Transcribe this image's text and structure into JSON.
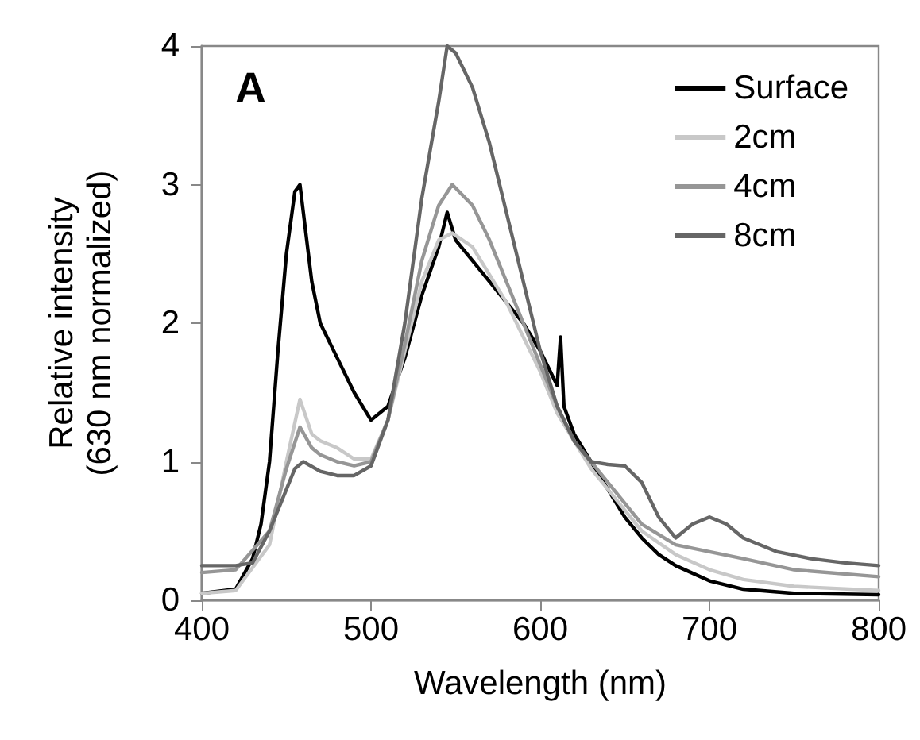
{
  "chart_data": {
    "type": "line",
    "xlabel": "Wavelength (nm)",
    "ylabel": "Relative intensity\n(630 nm normalized)",
    "annotations": [
      "A"
    ],
    "xlim": [
      400,
      800
    ],
    "xticks": [
      400,
      500,
      600,
      700,
      800
    ],
    "ylim": [
      0,
      4
    ],
    "yticks": [
      0,
      1,
      2,
      3,
      4
    ],
    "grid": false,
    "legend": "top right",
    "marker": "none",
    "line_style": "solid",
    "series": [
      {
        "name": "Surface",
        "color": "#000000",
        "x": [
          400,
          420,
          430,
          435,
          440,
          445,
          450,
          455,
          458,
          460,
          465,
          470,
          480,
          490,
          500,
          510,
          520,
          530,
          540,
          545,
          550,
          560,
          570,
          580,
          590,
          600,
          610,
          612,
          614,
          620,
          630,
          640,
          650,
          660,
          670,
          680,
          700,
          720,
          750,
          800
        ],
        "values": [
          0.05,
          0.08,
          0.3,
          0.55,
          1.0,
          1.8,
          2.5,
          2.95,
          3.0,
          2.8,
          2.3,
          2.0,
          1.75,
          1.5,
          1.3,
          1.4,
          1.75,
          2.2,
          2.55,
          2.8,
          2.6,
          2.45,
          2.3,
          2.15,
          2.0,
          1.8,
          1.55,
          1.9,
          1.4,
          1.2,
          1.0,
          0.8,
          0.6,
          0.45,
          0.33,
          0.25,
          0.14,
          0.08,
          0.05,
          0.04
        ]
      },
      {
        "name": "2cm",
        "color": "#c8c8c8",
        "x": [
          400,
          420,
          440,
          450,
          458,
          465,
          470,
          480,
          490,
          500,
          510,
          520,
          530,
          540,
          548,
          560,
          570,
          580,
          590,
          600,
          610,
          620,
          630,
          640,
          650,
          660,
          680,
          700,
          720,
          750,
          800
        ],
        "values": [
          0.05,
          0.07,
          0.4,
          1.0,
          1.45,
          1.2,
          1.15,
          1.1,
          1.02,
          1.02,
          1.3,
          1.8,
          2.3,
          2.6,
          2.65,
          2.55,
          2.35,
          2.15,
          1.9,
          1.65,
          1.35,
          1.15,
          0.95,
          0.8,
          0.65,
          0.5,
          0.33,
          0.22,
          0.15,
          0.1,
          0.07
        ]
      },
      {
        "name": "4cm",
        "color": "#969696",
        "x": [
          400,
          420,
          440,
          450,
          458,
          465,
          470,
          480,
          490,
          500,
          510,
          520,
          530,
          540,
          548,
          560,
          570,
          580,
          590,
          600,
          610,
          620,
          630,
          640,
          650,
          660,
          680,
          700,
          720,
          750,
          800
        ],
        "values": [
          0.2,
          0.22,
          0.5,
          0.95,
          1.25,
          1.1,
          1.05,
          1.0,
          0.97,
          1.0,
          1.3,
          1.85,
          2.45,
          2.85,
          3.0,
          2.85,
          2.6,
          2.3,
          2.0,
          1.7,
          1.4,
          1.15,
          1.0,
          0.85,
          0.7,
          0.55,
          0.4,
          0.35,
          0.3,
          0.22,
          0.17
        ]
      },
      {
        "name": "8cm",
        "color": "#666666",
        "x": [
          400,
          420,
          430,
          440,
          450,
          455,
          460,
          470,
          480,
          490,
          500,
          510,
          520,
          530,
          540,
          545,
          550,
          560,
          570,
          580,
          590,
          600,
          610,
          620,
          630,
          640,
          650,
          660,
          670,
          680,
          690,
          700,
          710,
          720,
          740,
          760,
          780,
          800
        ],
        "values": [
          0.25,
          0.25,
          0.27,
          0.5,
          0.8,
          0.95,
          1.0,
          0.93,
          0.9,
          0.9,
          0.97,
          1.3,
          2.0,
          2.9,
          3.6,
          4.0,
          3.95,
          3.7,
          3.3,
          2.8,
          2.3,
          1.8,
          1.4,
          1.15,
          1.0,
          0.98,
          0.97,
          0.85,
          0.6,
          0.45,
          0.55,
          0.6,
          0.55,
          0.45,
          0.35,
          0.3,
          0.27,
          0.25
        ]
      }
    ]
  }
}
